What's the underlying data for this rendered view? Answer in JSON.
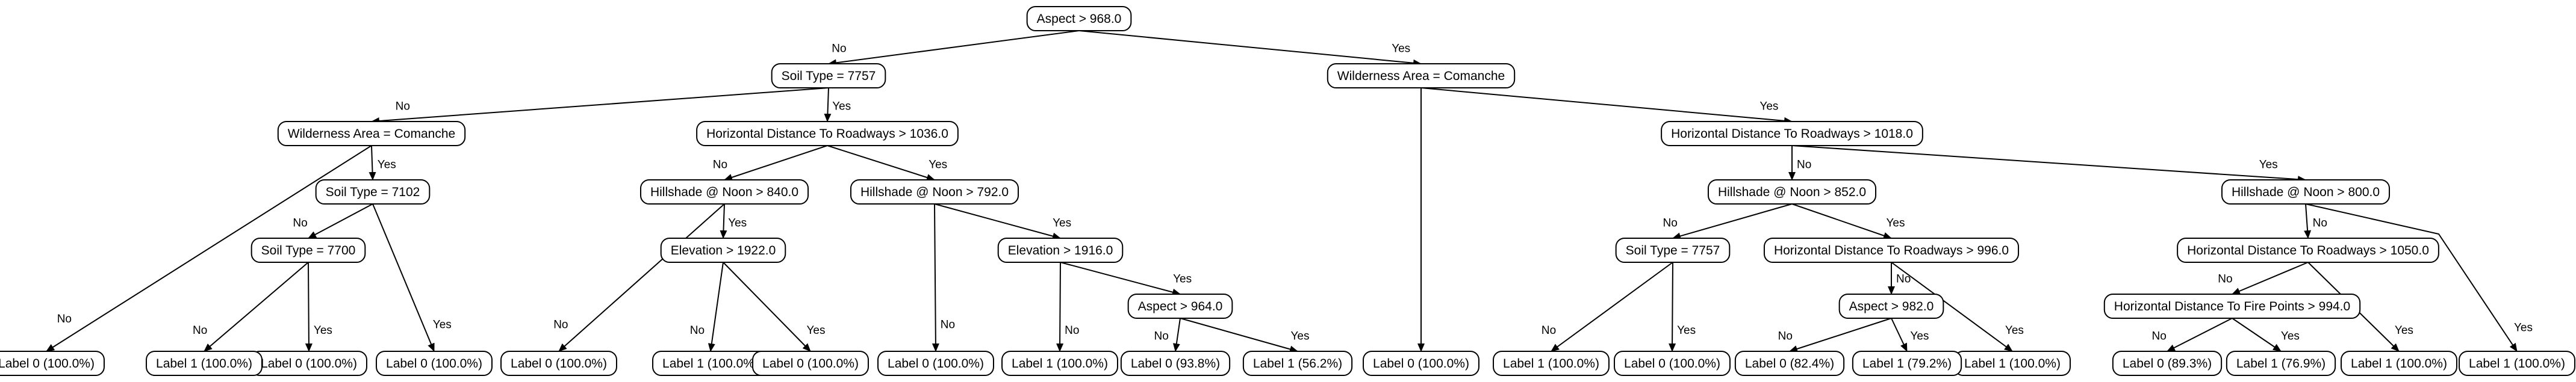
{
  "decision_tree": {
    "nodes": [
      {
        "id": "n0",
        "text": "Aspect > 968.0"
      },
      {
        "id": "n1",
        "text": "Soil Type = 7757"
      },
      {
        "id": "n2",
        "text": "Wilderness Area = Comanche"
      },
      {
        "id": "n3",
        "text": "Wilderness Area = Comanche"
      },
      {
        "id": "n4",
        "text": "Horizontal Distance To Roadways > 1036.0"
      },
      {
        "id": "n5",
        "text": "Label 0 (100.0%)"
      },
      {
        "id": "n6",
        "text": "Horizontal Distance To Roadways > 1018.0"
      },
      {
        "id": "n7",
        "text": "Soil Type = 7102"
      },
      {
        "id": "n8",
        "text": "Label 0 (100.0%)"
      },
      {
        "id": "n9",
        "text": "Soil Type = 7700"
      },
      {
        "id": "n10",
        "text": "Label 0 (100.0%)"
      },
      {
        "id": "n11",
        "text": "Label 1 (100.0%)"
      },
      {
        "id": "n12",
        "text": "Label 0 (100.0%)"
      },
      {
        "id": "n13",
        "text": "Hillshade @ Noon > 840.0"
      },
      {
        "id": "n14",
        "text": "Hillshade @ Noon > 792.0"
      },
      {
        "id": "n15",
        "text": "Elevation > 1922.0"
      },
      {
        "id": "n16",
        "text": "Label 0 (100.0%)"
      },
      {
        "id": "n17",
        "text": "Label 1 (100.0%)"
      },
      {
        "id": "n18",
        "text": "Label 0 (100.0%)"
      },
      {
        "id": "n19",
        "text": "Elevation > 1916.0"
      },
      {
        "id": "n20",
        "text": "Label 0 (100.0%)"
      },
      {
        "id": "n21",
        "text": "Aspect > 964.0"
      },
      {
        "id": "n22",
        "text": "Label 1 (100.0%)"
      },
      {
        "id": "n23",
        "text": "Label 0 (93.8%)"
      },
      {
        "id": "n24",
        "text": "Label 1 (56.2%)"
      },
      {
        "id": "n25",
        "text": "Hillshade @ Noon > 852.0"
      },
      {
        "id": "n26",
        "text": "Hillshade @ Noon > 800.0"
      },
      {
        "id": "n27",
        "text": "Soil Type = 7757"
      },
      {
        "id": "n28",
        "text": "Horizontal Distance To Roadways > 996.0"
      },
      {
        "id": "n29",
        "text": "Label 1 (100.0%)"
      },
      {
        "id": "n30",
        "text": "Label 0 (100.0%)"
      },
      {
        "id": "n31",
        "text": "Aspect > 982.0"
      },
      {
        "id": "n32",
        "text": "Label 1 (100.0%)"
      },
      {
        "id": "n33",
        "text": "Label 0 (82.4%)"
      },
      {
        "id": "n34",
        "text": "Label 1 (79.2%)"
      },
      {
        "id": "n35",
        "text": "Horizontal Distance To Roadways > 1050.0"
      },
      {
        "id": "n36",
        "text": "Label 1 (100.0%)"
      },
      {
        "id": "n37",
        "text": "Horizontal Distance To Fire Points > 994.0"
      },
      {
        "id": "n38",
        "text": "Label 1 (100.0%)"
      },
      {
        "id": "n39",
        "text": "Label 0 (89.3%)"
      },
      {
        "id": "n40",
        "text": "Label 1 (76.9%)"
      }
    ],
    "edges": [
      {
        "from": "n0",
        "to": "n1",
        "label": "No"
      },
      {
        "from": "n0",
        "to": "n2",
        "label": "Yes"
      },
      {
        "from": "n1",
        "to": "n3",
        "label": "No"
      },
      {
        "from": "n1",
        "to": "n4",
        "label": "Yes"
      },
      {
        "from": "n2",
        "to": "n5",
        "label": ""
      },
      {
        "from": "n2",
        "to": "n6",
        "label": "Yes"
      },
      {
        "from": "n3",
        "to": "n8",
        "label": "No"
      },
      {
        "from": "n3",
        "to": "n7",
        "label": "Yes"
      },
      {
        "from": "n7",
        "to": "n9",
        "label": "No"
      },
      {
        "from": "n7",
        "to": "n12",
        "label": "Yes"
      },
      {
        "from": "n9",
        "to": "n11",
        "label": "No"
      },
      {
        "from": "n9",
        "to": "n10",
        "label": "Yes"
      },
      {
        "from": "n4",
        "to": "n13",
        "label": "No"
      },
      {
        "from": "n4",
        "to": "n14",
        "label": "Yes"
      },
      {
        "from": "n13",
        "to": "n16",
        "label": "No"
      },
      {
        "from": "n13",
        "to": "n15",
        "label": "Yes"
      },
      {
        "from": "n15",
        "to": "n17",
        "label": "No"
      },
      {
        "from": "n15",
        "to": "n18",
        "label": "Yes"
      },
      {
        "from": "n14",
        "to": "n20",
        "label": "No"
      },
      {
        "from": "n14",
        "to": "n19",
        "label": "Yes"
      },
      {
        "from": "n19",
        "to": "n22",
        "label": "No"
      },
      {
        "from": "n19",
        "to": "n21",
        "label": "Yes"
      },
      {
        "from": "n21",
        "to": "n23",
        "label": "No"
      },
      {
        "from": "n21",
        "to": "n24",
        "label": "Yes"
      },
      {
        "from": "n6",
        "to": "n25",
        "label": "No"
      },
      {
        "from": "n6",
        "to": "n26",
        "label": "Yes"
      },
      {
        "from": "n25",
        "to": "n27",
        "label": "No"
      },
      {
        "from": "n25",
        "to": "n28",
        "label": "Yes"
      },
      {
        "from": "n27",
        "to": "n29",
        "label": "No"
      },
      {
        "from": "n27",
        "to": "n30",
        "label": "Yes"
      },
      {
        "from": "n28",
        "to": "n31",
        "label": "No"
      },
      {
        "from": "n28",
        "to": "n32",
        "label": "Yes"
      },
      {
        "from": "n31",
        "to": "n33",
        "label": "No"
      },
      {
        "from": "n31",
        "to": "n34",
        "label": "Yes"
      },
      {
        "from": "n26",
        "to": "n35",
        "label": "No"
      },
      {
        "from": "n26",
        "to": "n38",
        "label": "Yes"
      },
      {
        "from": "n35",
        "to": "n37",
        "label": "No"
      },
      {
        "from": "n35",
        "to": "n36",
        "label": "Yes"
      },
      {
        "from": "n37",
        "to": "n39",
        "label": "No"
      },
      {
        "from": "n37",
        "to": "n40",
        "label": "Yes"
      }
    ]
  }
}
